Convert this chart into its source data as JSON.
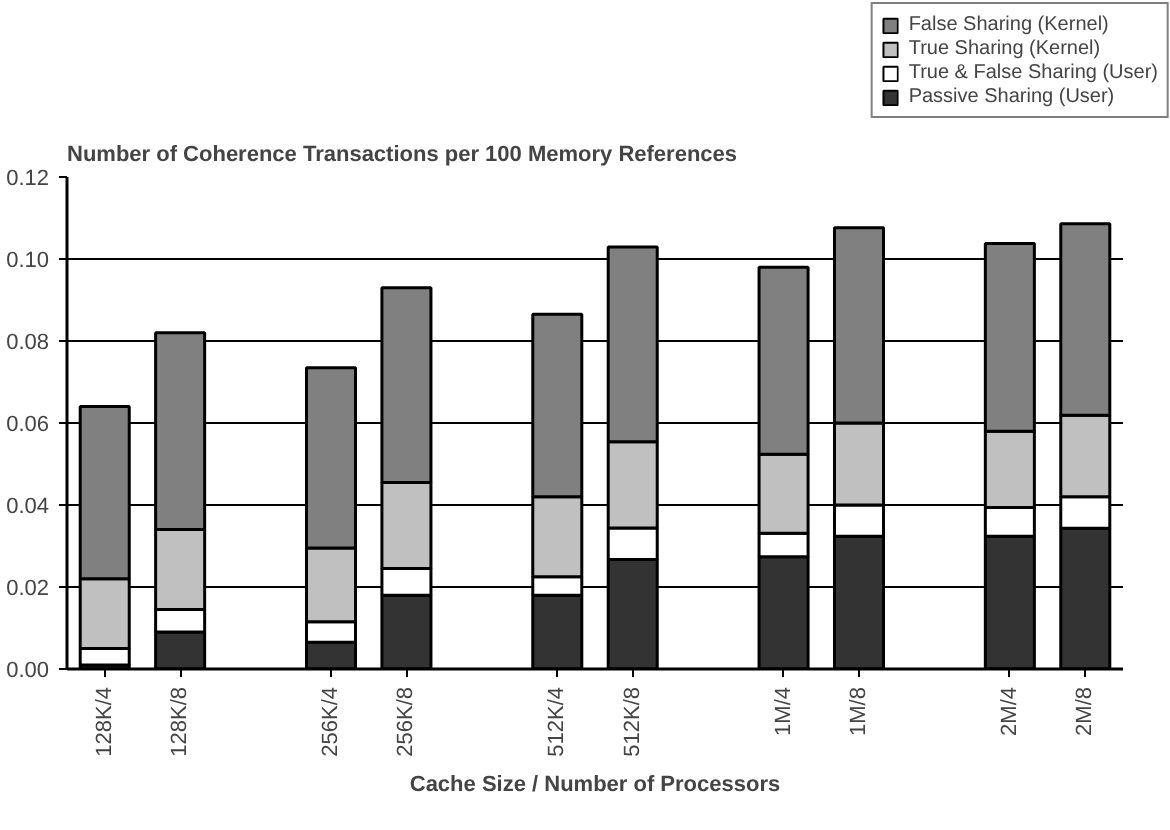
{
  "chart_data": {
    "type": "bar",
    "stacked": true,
    "title": "Number of Coherence Transactions per 100 Memory References",
    "xlabel": "Cache Size / Number of Processors",
    "categories": [
      "128K/4",
      "128K/8",
      null,
      "256K/4",
      "256K/8",
      null,
      "512K/4",
      "512K/8",
      null,
      "1M/4",
      "1M/8",
      null,
      "2M/4",
      "2M/8"
    ],
    "series": [
      {
        "name": "Passive Sharing (User)",
        "color": "#333333",
        "values": [
          0.001,
          0.009,
          null,
          0.0065,
          0.018,
          null,
          0.018,
          0.0267,
          null,
          0.0274,
          0.0324,
          null,
          0.0324,
          0.0343
        ]
      },
      {
        "name": "True & False Sharing (User)",
        "color": "#ffffff",
        "values": [
          0.004,
          0.0055,
          null,
          0.005,
          0.0065,
          null,
          0.0045,
          0.0077,
          null,
          0.0057,
          0.0076,
          null,
          0.007,
          0.0077
        ]
      },
      {
        "name": "True Sharing (Kernel)",
        "color": "#c0c0c0",
        "values": [
          0.017,
          0.0195,
          null,
          0.018,
          0.021,
          null,
          0.0195,
          0.021,
          null,
          0.0193,
          0.02,
          null,
          0.0186,
          0.0199
        ]
      },
      {
        "name": "False Sharing (Kernel)",
        "color": "#808080",
        "values": [
          0.042,
          0.048,
          null,
          0.044,
          0.0475,
          null,
          0.0445,
          0.0475,
          null,
          0.0456,
          0.0476,
          null,
          0.0458,
          0.0467
        ]
      }
    ],
    "ylim": [
      0,
      0.12
    ],
    "yticks": [
      {
        "value": 0,
        "label": "0.00"
      },
      {
        "value": 0.02,
        "label": "0.02"
      },
      {
        "value": 0.04,
        "label": "0.04"
      },
      {
        "value": 0.06,
        "label": "0.06"
      },
      {
        "value": 0.08,
        "label": "0.08"
      },
      {
        "value": 0.1,
        "label": "0.10"
      },
      {
        "value": 0.12,
        "label": "0.12"
      }
    ],
    "grid": "y",
    "legend": "top right"
  }
}
